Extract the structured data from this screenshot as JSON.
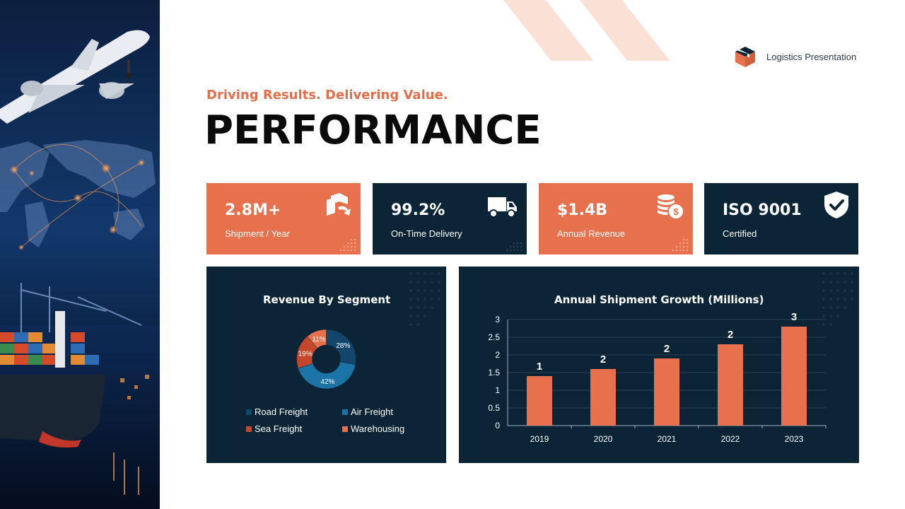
{
  "brand": {
    "label": "Logistics Presentation",
    "icon": "box-icon"
  },
  "header": {
    "subtitle": "Driving Results. Delivering Value.",
    "title": "PERFORMANCE"
  },
  "kpis": [
    {
      "value": "2.8M+",
      "label": "Shipment / Year",
      "icon": "shipment-icon",
      "theme": "#e8714d"
    },
    {
      "value": "99.2%",
      "label": "On-Time Delivery",
      "icon": "truck-icon",
      "theme": "#0b2537"
    },
    {
      "value": "$1.4B",
      "label": "Annual Revenue",
      "icon": "coins-icon",
      "theme": "#e8714d"
    },
    {
      "value": "ISO 9001",
      "label": "Certified",
      "icon": "shield-check-icon",
      "theme": "#0b2537"
    }
  ],
  "colors": {
    "orange": "#e8714d",
    "navy": "#0b2537",
    "accent_text": "#e46d4a"
  },
  "chart_data": [
    {
      "type": "pie",
      "title": "Revenue By Segment",
      "categories": [
        "Road Freight",
        "Air Freight",
        "Sea Freight",
        "Warehousing"
      ],
      "values": [
        28,
        42,
        19,
        11
      ],
      "labels": [
        "28%",
        "42%",
        "19%",
        "11%"
      ],
      "colors": [
        "#13466a",
        "#1c73a6",
        "#c4472a",
        "#e8714d"
      ],
      "legend": "bottom"
    },
    {
      "type": "bar",
      "title": "Annual Shipment Growth (Millions)",
      "categories": [
        "2019",
        "2020",
        "2021",
        "2022",
        "2023"
      ],
      "values": [
        1.4,
        1.6,
        1.9,
        2.3,
        2.8
      ],
      "data_labels": [
        "1",
        "2",
        "2",
        "2",
        "3"
      ],
      "ylim": [
        0,
        3
      ],
      "yticks": [
        "0",
        "0.5",
        "1",
        "1.5",
        "2",
        "2.5",
        "3"
      ],
      "grid": true,
      "color": "#e8714d"
    }
  ]
}
